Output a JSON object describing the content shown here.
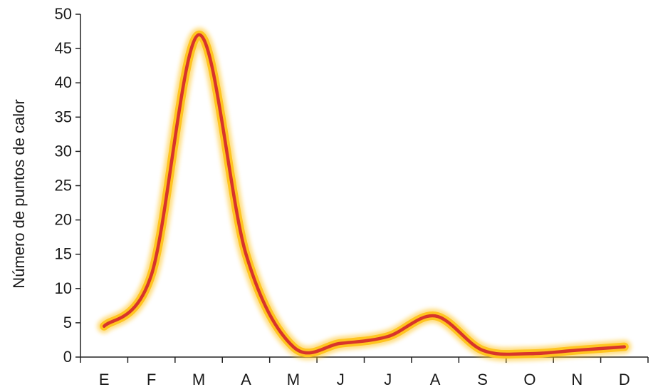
{
  "chart_data": {
    "type": "line",
    "title": "",
    "xlabel": "",
    "ylabel": "Número de puntos de calor",
    "categories": [
      "E",
      "F",
      "M",
      "A",
      "M",
      "J",
      "J",
      "A",
      "S",
      "O",
      "N",
      "D"
    ],
    "series": [
      {
        "values": [
          4.5,
          12,
          47,
          15,
          1.5,
          2,
          3,
          6,
          1,
          0.5,
          1,
          1.5
        ],
        "color": "#d8342b",
        "glow_color": "#ffc21a"
      }
    ],
    "ylim": [
      0,
      50
    ],
    "yticks": [
      0,
      5,
      10,
      15,
      20,
      25,
      30,
      35,
      40,
      45,
      50
    ],
    "grid": false,
    "legend": "none"
  }
}
